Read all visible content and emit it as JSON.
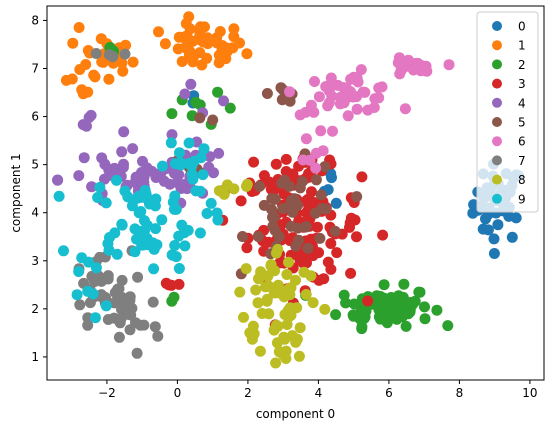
{
  "chart_data": {
    "type": "scatter",
    "xlabel": "component 0",
    "ylabel": "component 1",
    "xlim": [
      -3.7,
      10.4
    ],
    "ylim": [
      0.52,
      8.3
    ],
    "x_ticks": [
      -2,
      0,
      2,
      4,
      6,
      8,
      10
    ],
    "x_tick_labels": [
      "−2",
      "0",
      "2",
      "4",
      "6",
      "8",
      "10"
    ],
    "y_ticks": [
      1,
      2,
      3,
      4,
      5,
      6,
      7,
      8
    ],
    "y_tick_labels": [
      "1",
      "2",
      "3",
      "4",
      "5",
      "6",
      "7",
      "8"
    ],
    "grid": false,
    "legend_position": "right",
    "series": [
      {
        "name": "0",
        "color": "#1f77b4",
        "clusters": [
          {
            "cx": 9.1,
            "cy": 4.2,
            "sx": 0.35,
            "sy": 0.4,
            "n": 45
          },
          {
            "cx": 4.4,
            "cy": 4.6,
            "sx": 0.15,
            "sy": 0.2,
            "n": 5
          },
          {
            "cx": 0.5,
            "cy": 6.4,
            "sx": 0.1,
            "sy": 0.1,
            "n": 2
          }
        ]
      },
      {
        "name": "1",
        "color": "#ff7f0e",
        "clusters": [
          {
            "cx": 0.7,
            "cy": 7.45,
            "sx": 0.6,
            "sy": 0.25,
            "n": 45
          },
          {
            "cx": -2.2,
            "cy": 7.2,
            "sx": 0.5,
            "sy": 0.3,
            "n": 25
          },
          {
            "cx": -2.6,
            "cy": 6.45,
            "sx": 0.05,
            "sy": 0.1,
            "n": 3
          }
        ]
      },
      {
        "name": "2",
        "color": "#2ca02c",
        "clusters": [
          {
            "cx": 5.9,
            "cy": 2.05,
            "sx": 0.65,
            "sy": 0.2,
            "n": 80
          },
          {
            "cx": 0.6,
            "cy": 6.3,
            "sx": 0.5,
            "sy": 0.3,
            "n": 8
          },
          {
            "cx": -1.9,
            "cy": 7.35,
            "sx": 0.2,
            "sy": 0.1,
            "n": 4
          },
          {
            "cx": -0.2,
            "cy": 2.2,
            "sx": 0.05,
            "sy": 0.05,
            "n": 2
          }
        ]
      },
      {
        "name": "3",
        "color": "#d62728",
        "clusters": [
          {
            "cx": 3.6,
            "cy": 3.7,
            "sx": 0.8,
            "sy": 0.6,
            "n": 110
          },
          {
            "cx": 3.0,
            "cy": 4.8,
            "sx": 0.6,
            "sy": 0.3,
            "n": 20
          },
          {
            "cx": -0.2,
            "cy": 2.5,
            "sx": 0.2,
            "sy": 0.1,
            "n": 4
          }
        ]
      },
      {
        "name": "4",
        "color": "#9467bd",
        "clusters": [
          {
            "cx": -1.0,
            "cy": 4.7,
            "sx": 1.2,
            "sy": 0.3,
            "n": 60
          },
          {
            "cx": 0.6,
            "cy": 5.4,
            "sx": 0.5,
            "sy": 0.6,
            "n": 15
          },
          {
            "cx": -2.6,
            "cy": 5.6,
            "sx": 0.1,
            "sy": 0.3,
            "n": 4
          }
        ]
      },
      {
        "name": "5",
        "color": "#8c564b",
        "clusters": [
          {
            "cx": 3.4,
            "cy": 4.0,
            "sx": 0.7,
            "sy": 0.5,
            "n": 45
          },
          {
            "cx": 3.0,
            "cy": 6.5,
            "sx": 0.2,
            "sy": 0.1,
            "n": 6
          },
          {
            "cx": 0.6,
            "cy": 5.4,
            "sx": 0.3,
            "sy": 0.4,
            "n": 6
          }
        ]
      },
      {
        "name": "6",
        "color": "#e377c2",
        "clusters": [
          {
            "cx": 4.8,
            "cy": 6.5,
            "sx": 0.7,
            "sy": 0.2,
            "n": 45
          },
          {
            "cx": 6.6,
            "cy": 7.0,
            "sx": 0.35,
            "sy": 0.1,
            "n": 20
          },
          {
            "cx": 3.8,
            "cy": 5.6,
            "sx": 0.2,
            "sy": 0.3,
            "n": 8
          }
        ]
      },
      {
        "name": "7",
        "color": "#7f7f7f",
        "clusters": [
          {
            "cx": -2.3,
            "cy": 2.5,
            "sx": 0.5,
            "sy": 0.35,
            "n": 25
          },
          {
            "cx": -1.5,
            "cy": 1.8,
            "sx": 0.5,
            "sy": 0.4,
            "n": 35
          },
          {
            "cx": -2.0,
            "cy": 7.3,
            "sx": 0.3,
            "sy": 0.1,
            "n": 4
          }
        ]
      },
      {
        "name": "8",
        "color": "#bcbd22",
        "clusters": [
          {
            "cx": 2.9,
            "cy": 2.3,
            "sx": 0.6,
            "sy": 0.5,
            "n": 55
          },
          {
            "cx": 3.0,
            "cy": 1.3,
            "sx": 0.3,
            "sy": 0.3,
            "n": 15
          },
          {
            "cx": 1.6,
            "cy": 4.5,
            "sx": 0.4,
            "sy": 0.1,
            "n": 6
          }
        ]
      },
      {
        "name": "9",
        "color": "#17becf",
        "clusters": [
          {
            "cx": -1.0,
            "cy": 3.8,
            "sx": 0.9,
            "sy": 0.5,
            "n": 70
          },
          {
            "cx": 0.2,
            "cy": 5.0,
            "sx": 0.3,
            "sy": 0.3,
            "n": 15
          },
          {
            "cx": -2.3,
            "cy": 2.2,
            "sx": 0.3,
            "sy": 0.3,
            "n": 6
          }
        ]
      }
    ]
  }
}
